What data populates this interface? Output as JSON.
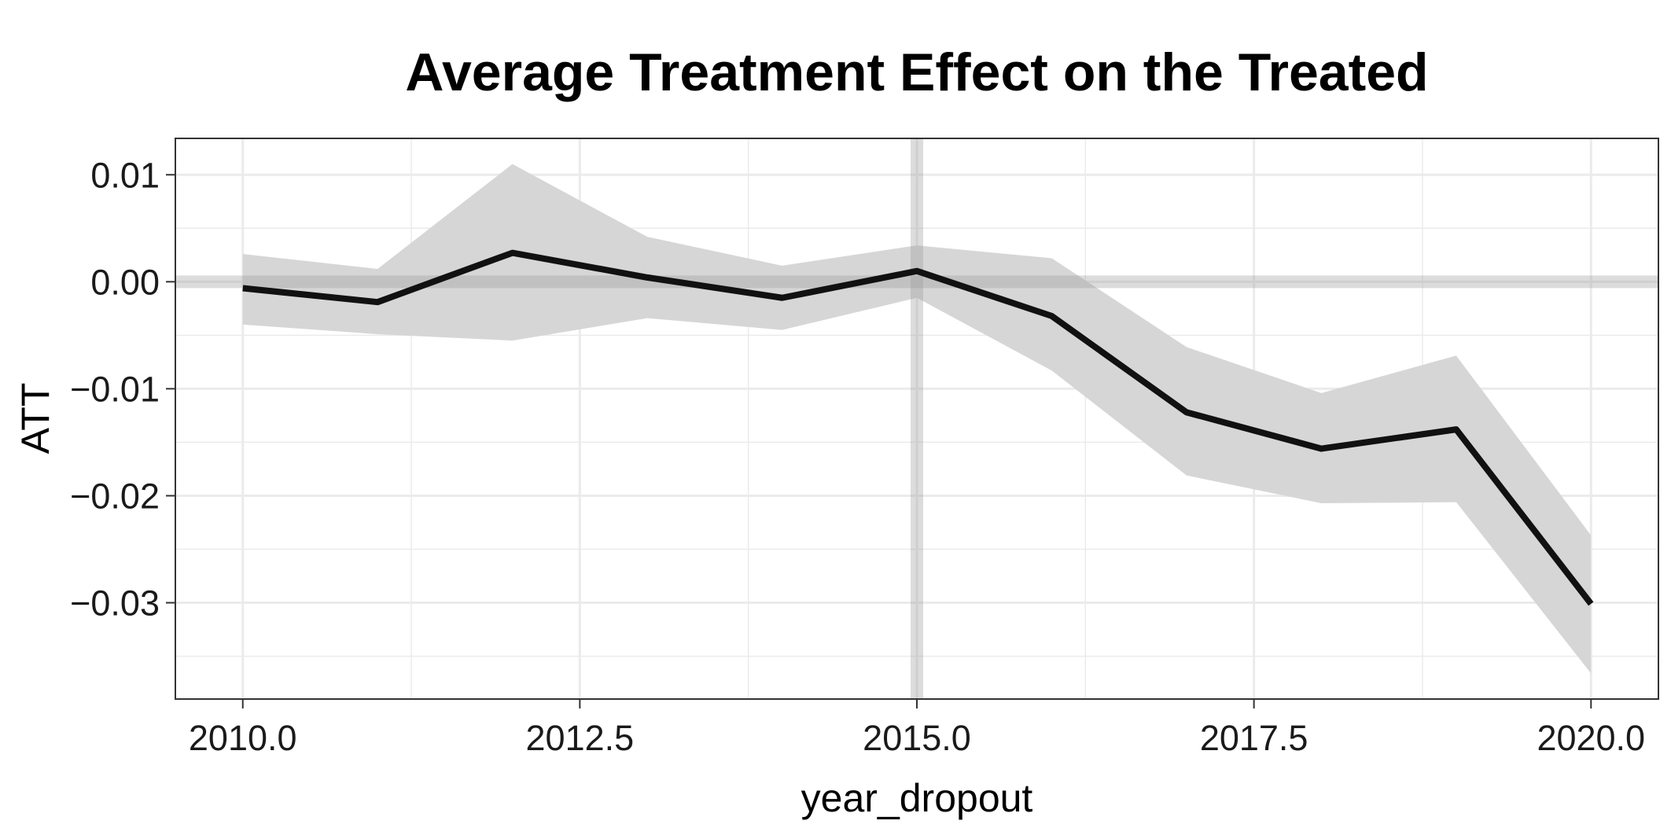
{
  "chart_data": {
    "type": "line",
    "title": "Average Treatment Effect on the Treated",
    "xlabel": "year_dropout",
    "ylabel": "ATT",
    "xlim": [
      2009.5,
      2020.5
    ],
    "ylim": [
      -0.039,
      0.0134
    ],
    "x_ticks": [
      2010.0,
      2012.5,
      2015.0,
      2017.5,
      2020.0
    ],
    "x_tick_labels": [
      "2010.0",
      "2012.5",
      "2015.0",
      "2017.5",
      "2020.0"
    ],
    "x_minor_ticks": [
      2011.25,
      2013.75,
      2016.25,
      2018.75
    ],
    "y_ticks": [
      0.01,
      0.0,
      -0.01,
      -0.02,
      -0.03
    ],
    "y_tick_labels": [
      "0.01",
      "0.00",
      "−0.01",
      "−0.02",
      "−0.03"
    ],
    "y_minor_ticks": [
      0.005,
      -0.005,
      -0.015,
      -0.025,
      -0.035
    ],
    "grid": true,
    "reference_lines": {
      "vertical_x": 2015,
      "horizontal_y": 0
    },
    "series": [
      {
        "x": [
          2010,
          2011,
          2012,
          2013,
          2014,
          2015,
          2016,
          2017,
          2018,
          2019,
          2020
        ],
        "values": [
          -0.0006,
          -0.0019,
          0.0027,
          0.0004,
          -0.0015,
          0.001,
          -0.0032,
          -0.0122,
          -0.0156,
          -0.0138,
          -0.0301
        ],
        "ci_upper": [
          0.0026,
          0.0012,
          0.011,
          0.0042,
          0.0015,
          0.0034,
          0.0022,
          -0.0061,
          -0.0104,
          -0.0069,
          -0.0237
        ],
        "ci_lower": [
          -0.004,
          -0.0049,
          -0.0055,
          -0.0034,
          -0.0045,
          -0.0015,
          -0.0083,
          -0.0181,
          -0.0207,
          -0.0206,
          -0.0366
        ]
      }
    ],
    "colors": {
      "line": "#111111",
      "ribbon": "#d6d6d6",
      "reference": "#bfbfbf",
      "grid": "#ebebeb",
      "panel_border": "#333333"
    }
  }
}
